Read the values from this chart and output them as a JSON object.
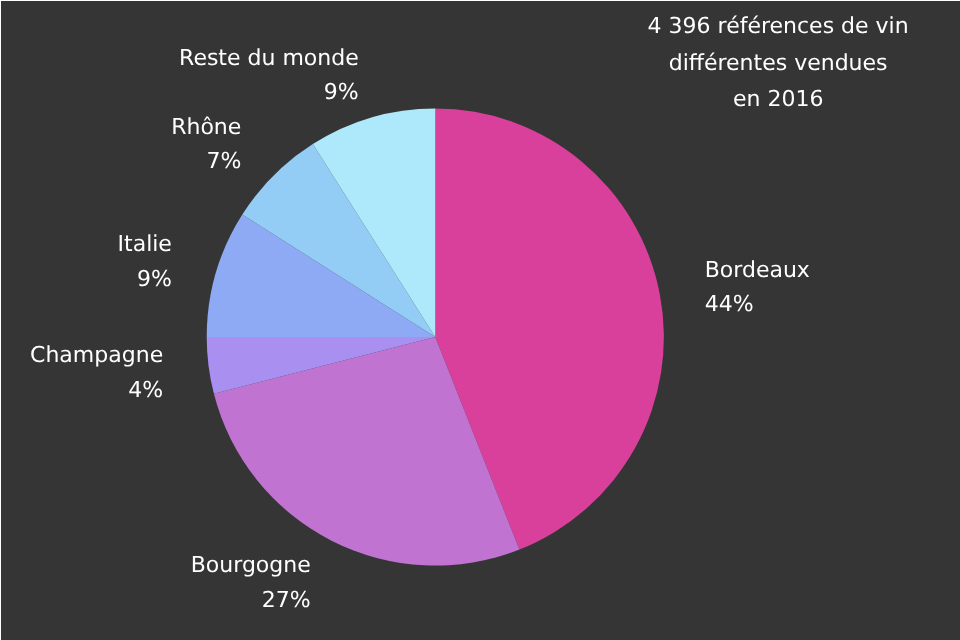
{
  "chart_data": {
    "type": "pie",
    "title": "4 396 références de vin\ndifférentes vendues\nen 2016",
    "categories": [
      "Bordeaux",
      "Bourgogne",
      "Champagne",
      "Italie",
      "Rhône",
      "Reste du monde"
    ],
    "values": [
      44,
      27,
      4,
      9,
      7,
      9
    ],
    "colors": [
      "#d9409b",
      "#c173d2",
      "#a98ff0",
      "#8faaf4",
      "#93cdf5",
      "#aee9fb"
    ],
    "value_labels": [
      "44%",
      "27%",
      "4%",
      "9%",
      "7%",
      "9%"
    ]
  }
}
